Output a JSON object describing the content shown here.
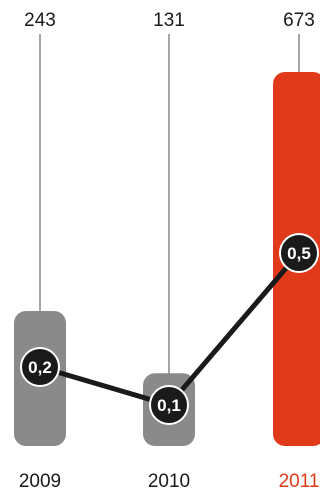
{
  "chart_data": {
    "type": "bar",
    "categories": [
      "2009",
      "2010",
      "2011"
    ],
    "top_labels": [
      "243",
      "131",
      "673"
    ],
    "series": [
      {
        "values": [
          243,
          131,
          673
        ]
      },
      {
        "values": [
          0.2,
          0.1,
          0.5
        ],
        "display": [
          "0,2",
          "0,1",
          "0,5"
        ]
      }
    ],
    "highlight_category": "2011",
    "ylim": [
      0,
      673
    ],
    "grid": false,
    "legend": "none"
  },
  "colors": {
    "bar_default": "#8a8a8a",
    "bar_highlight": "#e03a1a",
    "line": "#1a1a1a",
    "marker_fill": "#1a1a1a",
    "marker_text": "#ffffff",
    "stem": "#4d4d4d",
    "label_default": "#1a1a1a",
    "label_highlight": "#e03a1a"
  }
}
